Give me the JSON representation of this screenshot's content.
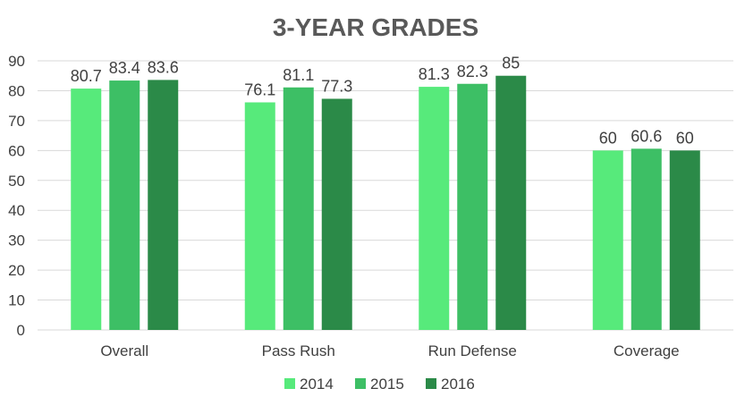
{
  "chart_data": {
    "type": "bar",
    "title": "3-YEAR GRADES",
    "xlabel": "",
    "ylabel": "",
    "categories": [
      "Overall",
      "Pass Rush",
      "Run Defense",
      "Coverage"
    ],
    "series": [
      {
        "name": "2014",
        "color": "#57ea7b",
        "values": [
          80.7,
          76.1,
          81.3,
          60
        ]
      },
      {
        "name": "2015",
        "color": "#3dbf65",
        "values": [
          83.4,
          81.1,
          82.3,
          60.6
        ]
      },
      {
        "name": "2016",
        "color": "#2b8a48",
        "values": [
          83.6,
          77.3,
          85,
          60
        ]
      }
    ],
    "data_labels": [
      [
        "80.7",
        "76.1",
        "81.3",
        "60"
      ],
      [
        "83.4",
        "81.1",
        "82.3",
        "60.6"
      ],
      [
        "83.6",
        "77.3",
        "85",
        "60"
      ]
    ],
    "ylim": [
      0,
      90
    ],
    "yticks": [
      "0",
      "10",
      "20",
      "30",
      "40",
      "50",
      "60",
      "70",
      "80",
      "90"
    ],
    "grid": "horizontal",
    "legend": "bottom"
  }
}
